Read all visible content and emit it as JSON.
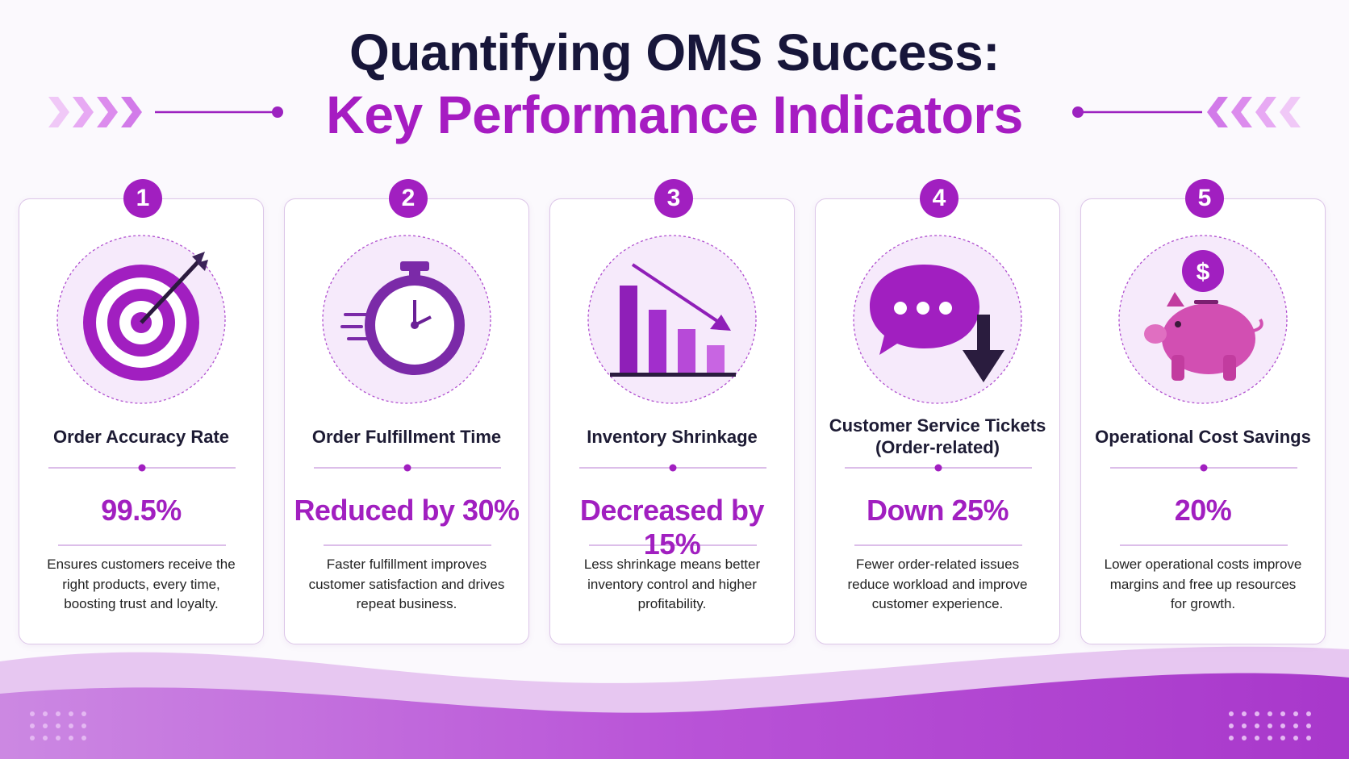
{
  "header": {
    "title": "Quantifying OMS Success:",
    "subtitle": "Key Performance Indicators"
  },
  "cards": [
    {
      "number": "1",
      "title": "Order Accuracy Rate",
      "value": "99.5%",
      "description": "Ensures customers receive the right products, every time, boosting trust and loyalty."
    },
    {
      "number": "2",
      "title": "Order Fulfillment Time",
      "value": "Reduced by 30%",
      "description": "Faster fulfillment improves customer satisfaction and drives repeat business."
    },
    {
      "number": "3",
      "title": "Inventory Shrinkage",
      "value": "Decreased by 15%",
      "description": "Less shrinkage means better inventory control and higher profitability."
    },
    {
      "number": "4",
      "title": "Customer Service Tickets (Order-related)",
      "value": "Down 25%",
      "description": "Fewer order-related issues reduce workload and improve customer experience."
    },
    {
      "number": "5",
      "title": "Operational Cost Savings",
      "value": "20%",
      "description": "Lower operational costs improve margins and free up resources for growth."
    }
  ]
}
